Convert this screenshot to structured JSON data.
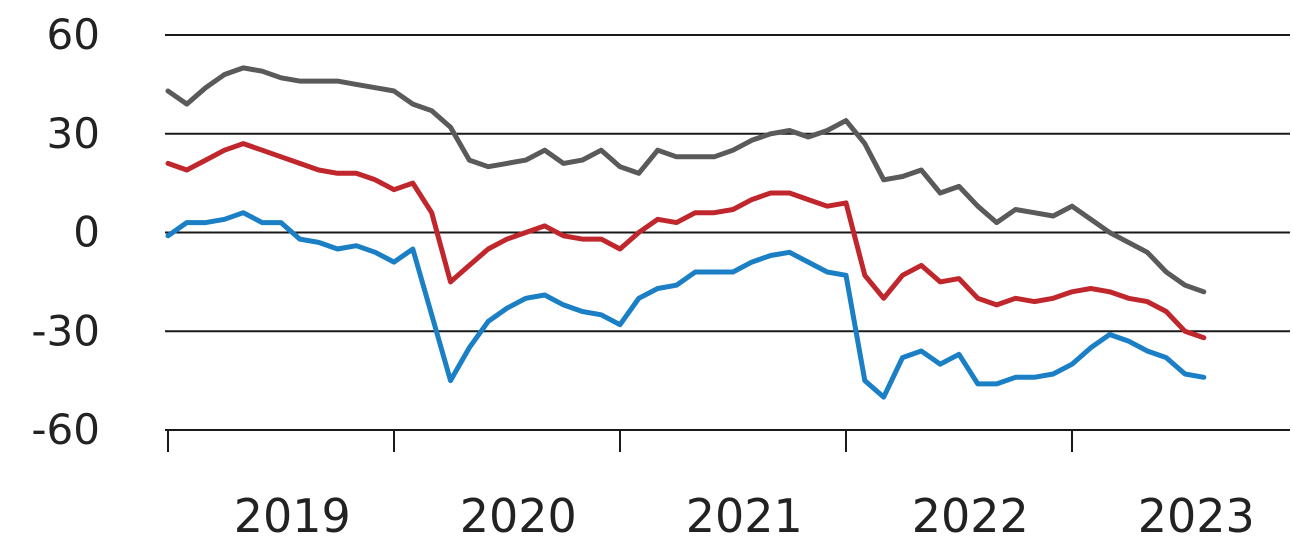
{
  "chart_data": {
    "type": "line",
    "title": "",
    "xlabel": "",
    "ylabel": "",
    "ylim": [
      -60,
      60
    ],
    "yticks": [
      60,
      30,
      0,
      -30,
      -60
    ],
    "xlim": [
      "2019-01",
      "2023-09"
    ],
    "xticks": [
      "2019",
      "2020",
      "2021",
      "2022",
      "2023"
    ],
    "grid": "horizontal",
    "legend": "none",
    "series": [
      {
        "color": "#5a5a5a",
        "points": [
          [
            "2019-01",
            43
          ],
          [
            "2019-02",
            39
          ],
          [
            "2019-03",
            44
          ],
          [
            "2019-04",
            48
          ],
          [
            "2019-05",
            50
          ],
          [
            "2019-06",
            49
          ],
          [
            "2019-07",
            47
          ],
          [
            "2019-08",
            46
          ],
          [
            "2019-09",
            46
          ],
          [
            "2019-10",
            46
          ],
          [
            "2019-11",
            45
          ],
          [
            "2019-12",
            44
          ],
          [
            "2020-01",
            43
          ],
          [
            "2020-02",
            39
          ],
          [
            "2020-03",
            37
          ],
          [
            "2020-04",
            32
          ],
          [
            "2020-05",
            22
          ],
          [
            "2020-06",
            20
          ],
          [
            "2020-07",
            21
          ],
          [
            "2020-08",
            22
          ],
          [
            "2020-09",
            25
          ],
          [
            "2020-10",
            21
          ],
          [
            "2020-11",
            22
          ],
          [
            "2020-12",
            25
          ],
          [
            "2021-01",
            20
          ],
          [
            "2021-02",
            18
          ],
          [
            "2021-03",
            25
          ],
          [
            "2021-04",
            23
          ],
          [
            "2021-05",
            23
          ],
          [
            "2021-06",
            23
          ],
          [
            "2021-07",
            25
          ],
          [
            "2021-08",
            28
          ],
          [
            "2021-09",
            30
          ],
          [
            "2021-10",
            31
          ],
          [
            "2021-11",
            29
          ],
          [
            "2021-12",
            31
          ],
          [
            "2022-01",
            34
          ],
          [
            "2022-02",
            27
          ],
          [
            "2022-03",
            16
          ],
          [
            "2022-04",
            17
          ],
          [
            "2022-05",
            19
          ],
          [
            "2022-06",
            12
          ],
          [
            "2022-07",
            14
          ],
          [
            "2022-08",
            8
          ],
          [
            "2022-09",
            3
          ],
          [
            "2022-10",
            7
          ],
          [
            "2022-11",
            6
          ],
          [
            "2022-12",
            5
          ],
          [
            "2023-01",
            8
          ],
          [
            "2023-02",
            4
          ],
          [
            "2023-03",
            0
          ],
          [
            "2023-04",
            -3
          ],
          [
            "2023-05",
            -6
          ],
          [
            "2023-06",
            -12
          ],
          [
            "2023-07",
            -16
          ],
          [
            "2023-08",
            -18
          ]
        ]
      },
      {
        "color": "#c0272d",
        "points": [
          [
            "2019-01",
            21
          ],
          [
            "2019-02",
            19
          ],
          [
            "2019-03",
            22
          ],
          [
            "2019-04",
            25
          ],
          [
            "2019-05",
            27
          ],
          [
            "2019-06",
            25
          ],
          [
            "2019-07",
            23
          ],
          [
            "2019-08",
            21
          ],
          [
            "2019-09",
            19
          ],
          [
            "2019-10",
            18
          ],
          [
            "2019-11",
            18
          ],
          [
            "2019-12",
            16
          ],
          [
            "2020-01",
            13
          ],
          [
            "2020-02",
            15
          ],
          [
            "2020-03",
            6
          ],
          [
            "2020-04",
            -15
          ],
          [
            "2020-05",
            -10
          ],
          [
            "2020-06",
            -5
          ],
          [
            "2020-07",
            -2
          ],
          [
            "2020-08",
            0
          ],
          [
            "2020-09",
            2
          ],
          [
            "2020-10",
            -1
          ],
          [
            "2020-11",
            -2
          ],
          [
            "2020-12",
            -2
          ],
          [
            "2021-01",
            -5
          ],
          [
            "2021-02",
            0
          ],
          [
            "2021-03",
            4
          ],
          [
            "2021-04",
            3
          ],
          [
            "2021-05",
            6
          ],
          [
            "2021-06",
            6
          ],
          [
            "2021-07",
            7
          ],
          [
            "2021-08",
            10
          ],
          [
            "2021-09",
            12
          ],
          [
            "2021-10",
            12
          ],
          [
            "2021-11",
            10
          ],
          [
            "2021-12",
            8
          ],
          [
            "2022-01",
            9
          ],
          [
            "2022-02",
            -13
          ],
          [
            "2022-03",
            -20
          ],
          [
            "2022-04",
            -13
          ],
          [
            "2022-05",
            -10
          ],
          [
            "2022-06",
            -15
          ],
          [
            "2022-07",
            -14
          ],
          [
            "2022-08",
            -20
          ],
          [
            "2022-09",
            -22
          ],
          [
            "2022-10",
            -20
          ],
          [
            "2022-11",
            -21
          ],
          [
            "2022-12",
            -20
          ],
          [
            "2023-01",
            -18
          ],
          [
            "2023-02",
            -17
          ],
          [
            "2023-03",
            -18
          ],
          [
            "2023-04",
            -20
          ],
          [
            "2023-05",
            -21
          ],
          [
            "2023-06",
            -24
          ],
          [
            "2023-07",
            -30
          ],
          [
            "2023-08",
            -32
          ]
        ]
      },
      {
        "color": "#1a7fc4",
        "points": [
          [
            "2019-01",
            -1
          ],
          [
            "2019-02",
            3
          ],
          [
            "2019-03",
            3
          ],
          [
            "2019-04",
            4
          ],
          [
            "2019-05",
            6
          ],
          [
            "2019-06",
            3
          ],
          [
            "2019-07",
            3
          ],
          [
            "2019-08",
            -2
          ],
          [
            "2019-09",
            -3
          ],
          [
            "2019-10",
            -5
          ],
          [
            "2019-11",
            -4
          ],
          [
            "2019-12",
            -6
          ],
          [
            "2020-01",
            -9
          ],
          [
            "2020-02",
            -5
          ],
          [
            "2020-03",
            -25
          ],
          [
            "2020-04",
            -45
          ],
          [
            "2020-05",
            -35
          ],
          [
            "2020-06",
            -27
          ],
          [
            "2020-07",
            -23
          ],
          [
            "2020-08",
            -20
          ],
          [
            "2020-09",
            -19
          ],
          [
            "2020-10",
            -22
          ],
          [
            "2020-11",
            -24
          ],
          [
            "2020-12",
            -25
          ],
          [
            "2021-01",
            -28
          ],
          [
            "2021-02",
            -20
          ],
          [
            "2021-03",
            -17
          ],
          [
            "2021-04",
            -16
          ],
          [
            "2021-05",
            -12
          ],
          [
            "2021-06",
            -12
          ],
          [
            "2021-07",
            -12
          ],
          [
            "2021-08",
            -9
          ],
          [
            "2021-09",
            -7
          ],
          [
            "2021-10",
            -6
          ],
          [
            "2021-11",
            -9
          ],
          [
            "2021-12",
            -12
          ],
          [
            "2022-01",
            -13
          ],
          [
            "2022-02",
            -45
          ],
          [
            "2022-03",
            -50
          ],
          [
            "2022-04",
            -38
          ],
          [
            "2022-05",
            -36
          ],
          [
            "2022-06",
            -40
          ],
          [
            "2022-07",
            -37
          ],
          [
            "2022-08",
            -46
          ],
          [
            "2022-09",
            -46
          ],
          [
            "2022-10",
            -44
          ],
          [
            "2022-11",
            -44
          ],
          [
            "2022-12",
            -43
          ],
          [
            "2023-01",
            -40
          ],
          [
            "2023-02",
            -35
          ],
          [
            "2023-03",
            -31
          ],
          [
            "2023-04",
            -33
          ],
          [
            "2023-05",
            -36
          ],
          [
            "2023-06",
            -38
          ],
          [
            "2023-07",
            -43
          ],
          [
            "2023-08",
            -44
          ]
        ]
      }
    ]
  }
}
